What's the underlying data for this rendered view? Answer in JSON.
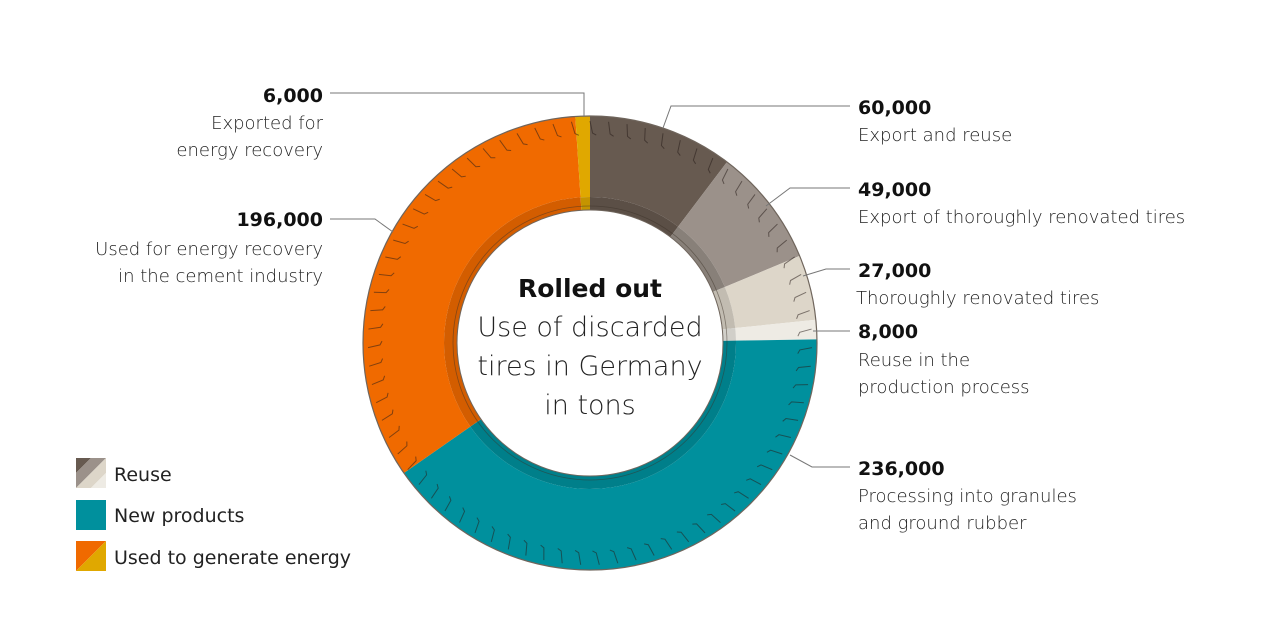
{
  "chart_data": {
    "type": "pie",
    "donut": true,
    "title": "Rolled out",
    "subtitle": [
      "Use of discarded",
      "tires in Germany",
      "in tons"
    ],
    "unit": "tons",
    "slices": [
      {
        "value": 60000,
        "value_label": "60,000",
        "label": [
          "Export and reuse"
        ],
        "group": "Reuse",
        "color": "#675a50"
      },
      {
        "value": 49000,
        "value_label": "49,000",
        "label": [
          "Export of thoroughly renovated tires"
        ],
        "group": "Reuse",
        "color": "#9b918a"
      },
      {
        "value": 27000,
        "value_label": "27,000",
        "label": [
          "Thoroughly renovated tires"
        ],
        "group": "Reuse",
        "color": "#ddd6c9"
      },
      {
        "value": 8000,
        "value_label": "8,000",
        "label": [
          "Reuse in the",
          "production process"
        ],
        "group": "Reuse",
        "color": "#eeebe4"
      },
      {
        "value": 236000,
        "value_label": "236,000",
        "label": [
          "Processing into granules",
          "and ground rubber"
        ],
        "group": "New products",
        "color": "#00909d"
      },
      {
        "value": 196000,
        "value_label": "196,000",
        "label": [
          "Used for energy recovery",
          "in the cement industry"
        ],
        "group": "Used to generate energy",
        "color": "#f06a00"
      },
      {
        "value": 6000,
        "value_label": "6,000",
        "label": [
          "Exported for",
          "energy recovery"
        ],
        "group": "Used to generate energy",
        "color": "#e0a800"
      }
    ],
    "legend": [
      {
        "label": "Reuse",
        "colors": [
          "#675a50",
          "#9b918a",
          "#ddd6c9",
          "#eeebe4"
        ]
      },
      {
        "label": "New products",
        "colors": [
          "#00909d"
        ]
      },
      {
        "label": "Used to generate energy",
        "colors": [
          "#f06a00",
          "#e0a800"
        ]
      }
    ],
    "legend_position": "bottom-left"
  }
}
